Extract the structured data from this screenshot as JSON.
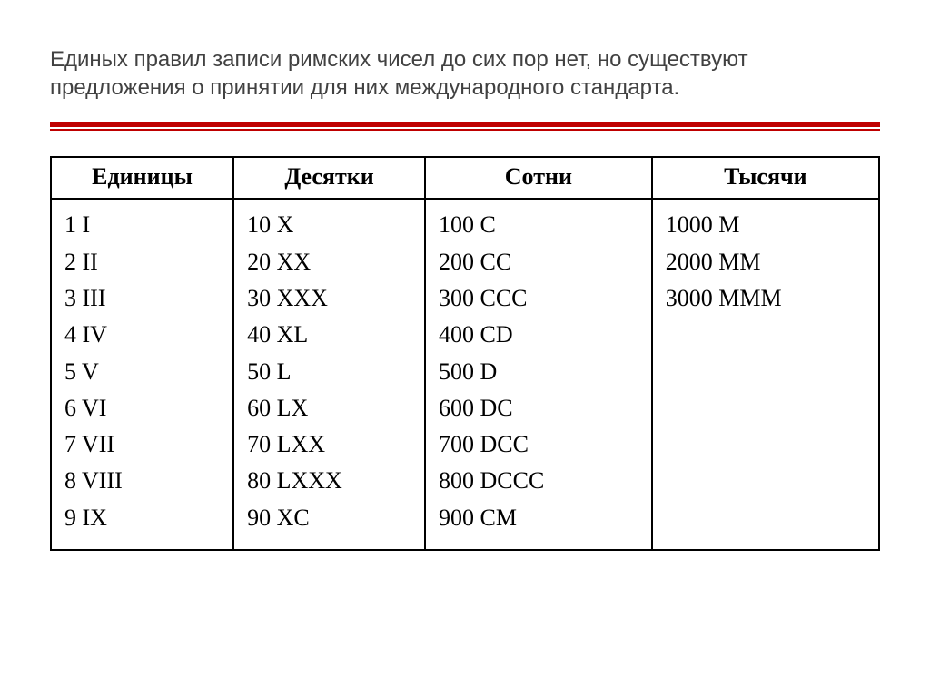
{
  "title_text": "Единых правил записи римских чисел до сих пор нет, но существуют предложения о принятии для них международного стандарта.",
  "accent_color": "#bf0000",
  "table": {
    "headers": {
      "units": "Единицы",
      "tens": "Десятки",
      "hundreds": "Сотни",
      "thousands": "Тысячи"
    },
    "columns": {
      "units": [
        "1 I",
        "2 II",
        "3 III",
        "4 IV",
        "5 V",
        "6 VI",
        "7 VII",
        "8 VIII",
        "9 IX"
      ],
      "tens": [
        "10 X",
        "20 XX",
        "30 XXX",
        "40 XL",
        "50 L",
        "60 LX",
        "70 LXX",
        "80 LXXX",
        "90 XC"
      ],
      "hundreds": [
        "100 C",
        "200 CC",
        "300 CCC",
        "400 CD",
        "500 D",
        "600 DC",
        "700 DCC",
        "800 DCCC",
        "900 CM"
      ],
      "thousands": [
        "1000 M",
        "2000 MM",
        "3000 MMM"
      ]
    },
    "header_fontsize": 26,
    "cell_fontsize": 26,
    "border_color": "#000000",
    "background_color": "#ffffff",
    "font_family": "Times New Roman"
  },
  "title_fontsize": 24,
  "title_color": "#414141"
}
